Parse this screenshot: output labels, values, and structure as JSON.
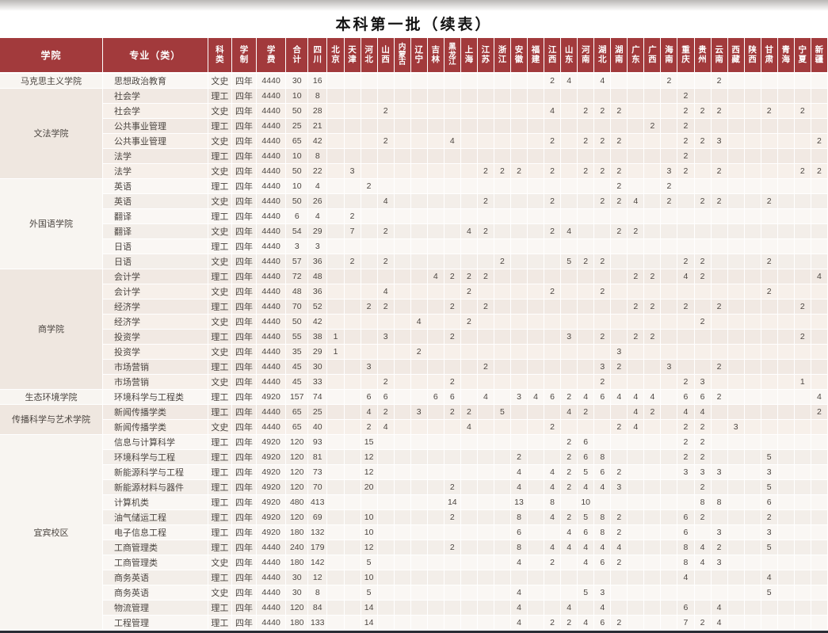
{
  "title": "本科第一批（续表）",
  "colors": {
    "header_bg": "#a23a3c",
    "header_text": "#ffffff",
    "body_text": "#4b4540",
    "section_beige": "#f1e9e3",
    "section_light": "#faf7f4",
    "bottom_border": "#2a2d35"
  },
  "table": {
    "left_headers": [
      "学院",
      "专业（类）",
      "科类",
      "学制",
      "学费",
      "合计"
    ],
    "provinces": [
      "四川",
      "北京",
      "天津",
      "河北",
      "山西",
      "内蒙古",
      "辽宁",
      "吉林",
      "黑龙江",
      "上海",
      "江苏",
      "浙江",
      "安徽",
      "福建",
      "江西",
      "山东",
      "河南",
      "湖北",
      "湖南",
      "广东",
      "广西",
      "海南",
      "重庆",
      "贵州",
      "云南",
      "西藏",
      "陕西",
      "甘肃",
      "青海",
      "宁夏",
      "新疆"
    ],
    "colleges": [
      {
        "name": "马克思主义学院",
        "row_count": 1
      },
      {
        "name": "文法学院",
        "row_count": 6
      },
      {
        "name": "外国语学院",
        "row_count": 6
      },
      {
        "name": "商学院",
        "row_count": 8
      },
      {
        "name": "生态环境学院",
        "row_count": 1
      },
      {
        "name": "传播科学与艺术学院",
        "row_count": 2
      },
      {
        "name": "宜宾校区",
        "row_count": 13
      }
    ],
    "rows": [
      {
        "major": "思想政治教育",
        "category": "文史",
        "duration": "四年",
        "tuition": "4440",
        "total": "30",
        "quotas": {
          "四川": 16,
          "江西": 2,
          "山东": 4,
          "湖北": 4,
          "海南": 2,
          "云南": 2
        }
      },
      {
        "major": "社会学",
        "category": "理工",
        "duration": "四年",
        "tuition": "4440",
        "total": "10",
        "quotas": {
          "四川": 8,
          "重庆": 2
        }
      },
      {
        "major": "社会学",
        "category": "文史",
        "duration": "四年",
        "tuition": "4440",
        "total": "50",
        "quotas": {
          "四川": 28,
          "山西": 2,
          "江西": 4,
          "河南": 2,
          "湖北": 2,
          "湖南": 2,
          "重庆": 2,
          "贵州": 2,
          "云南": 2,
          "甘肃": 2,
          "宁夏": 2
        }
      },
      {
        "major": "公共事业管理",
        "category": "理工",
        "duration": "四年",
        "tuition": "4440",
        "total": "25",
        "quotas": {
          "四川": 21,
          "广西": 2,
          "重庆": 2
        }
      },
      {
        "major": "公共事业管理",
        "category": "文史",
        "duration": "四年",
        "tuition": "4440",
        "total": "65",
        "quotas": {
          "四川": 42,
          "山西": 2,
          "黑龙江": 4,
          "江西": 2,
          "河南": 2,
          "湖北": 2,
          "湖南": 2,
          "重庆": 2,
          "贵州": 2,
          "云南": 3,
          "新疆": 2
        }
      },
      {
        "major": "法学",
        "category": "理工",
        "duration": "四年",
        "tuition": "4440",
        "total": "10",
        "quotas": {
          "四川": 8,
          "重庆": 2
        }
      },
      {
        "major": "法学",
        "category": "文史",
        "duration": "四年",
        "tuition": "4440",
        "total": "50",
        "quotas": {
          "四川": 22,
          "天津": 3,
          "江苏": 2,
          "浙江": 2,
          "安徽": 2,
          "江西": 2,
          "河南": 2,
          "湖北": 2,
          "湖南": 2,
          "海南": 3,
          "重庆": 2,
          "云南": 2,
          "宁夏": 2,
          "新疆": 2
        }
      },
      {
        "major": "英语",
        "category": "理工",
        "duration": "四年",
        "tuition": "4440",
        "total": "10",
        "quotas": {
          "四川": 4,
          "河北": 2,
          "湖南": 2,
          "海南": 2
        }
      },
      {
        "major": "英语",
        "category": "文史",
        "duration": "四年",
        "tuition": "4440",
        "total": "50",
        "quotas": {
          "四川": 26,
          "山西": 4,
          "江苏": 2,
          "江西": 2,
          "湖北": 2,
          "湖南": 2,
          "广东": 4,
          "海南": 2,
          "贵州": 2,
          "云南": 2,
          "甘肃": 2
        }
      },
      {
        "major": "翻译",
        "category": "理工",
        "duration": "四年",
        "tuition": "4440",
        "total": "6",
        "quotas": {
          "四川": 4,
          "天津": 2
        }
      },
      {
        "major": "翻译",
        "category": "文史",
        "duration": "四年",
        "tuition": "4440",
        "total": "54",
        "quotas": {
          "四川": 29,
          "天津": 7,
          "山西": 2,
          "上海": 4,
          "江苏": 2,
          "江西": 2,
          "山东": 4,
          "湖南": 2,
          "广东": 2
        }
      },
      {
        "major": "日语",
        "category": "理工",
        "duration": "四年",
        "tuition": "4440",
        "total": "3",
        "quotas": {
          "四川": 3
        }
      },
      {
        "major": "日语",
        "category": "文史",
        "duration": "四年",
        "tuition": "4440",
        "total": "57",
        "quotas": {
          "四川": 36,
          "天津": 2,
          "山西": 2,
          "浙江": 2,
          "山东": 5,
          "河南": 2,
          "湖北": 2,
          "重庆": 2,
          "贵州": 2,
          "甘肃": 2
        }
      },
      {
        "major": "会计学",
        "category": "理工",
        "duration": "四年",
        "tuition": "4440",
        "total": "72",
        "quotas": {
          "四川": 48,
          "吉林": 4,
          "黑龙江": 2,
          "上海": 2,
          "江苏": 2,
          "广东": 2,
          "广西": 2,
          "重庆": 4,
          "贵州": 2,
          "新疆": 4
        }
      },
      {
        "major": "会计学",
        "category": "文史",
        "duration": "四年",
        "tuition": "4440",
        "total": "48",
        "quotas": {
          "四川": 36,
          "山西": 4,
          "上海": 2,
          "江西": 2,
          "湖北": 2,
          "甘肃": 2
        }
      },
      {
        "major": "经济学",
        "category": "理工",
        "duration": "四年",
        "tuition": "4440",
        "total": "70",
        "quotas": {
          "四川": 52,
          "河北": 2,
          "山西": 2,
          "黑龙江": 2,
          "江苏": 2,
          "广东": 2,
          "广西": 2,
          "重庆": 2,
          "云南": 2,
          "宁夏": 2
        }
      },
      {
        "major": "经济学",
        "category": "文史",
        "duration": "四年",
        "tuition": "4440",
        "total": "50",
        "quotas": {
          "四川": 42,
          "辽宁": 4,
          "上海": 2,
          "贵州": 2
        }
      },
      {
        "major": "投资学",
        "category": "理工",
        "duration": "四年",
        "tuition": "4440",
        "total": "55",
        "quotas": {
          "四川": 38,
          "北京": 1,
          "山西": 3,
          "黑龙江": 2,
          "山东": 3,
          "湖北": 2,
          "广东": 2,
          "广西": 2,
          "宁夏": 2
        }
      },
      {
        "major": "投资学",
        "category": "文史",
        "duration": "四年",
        "tuition": "4440",
        "total": "35",
        "quotas": {
          "四川": 29,
          "北京": 1,
          "辽宁": 2,
          "湖南": 3
        }
      },
      {
        "major": "市场营销",
        "category": "理工",
        "duration": "四年",
        "tuition": "4440",
        "total": "45",
        "quotas": {
          "四川": 30,
          "河北": 3,
          "江苏": 2,
          "湖北": 3,
          "湖南": 2,
          "海南": 3,
          "云南": 2
        }
      },
      {
        "major": "市场营销",
        "category": "文史",
        "duration": "四年",
        "tuition": "4440",
        "total": "45",
        "quotas": {
          "四川": 33,
          "山西": 2,
          "黑龙江": 2,
          "湖北": 2,
          "重庆": 2,
          "贵州": 3,
          "宁夏": 1
        }
      },
      {
        "major": "环境科学与工程类",
        "category": "理工",
        "duration": "四年",
        "tuition": "4920",
        "total": "157",
        "quotas": {
          "四川": 74,
          "河北": 6,
          "山西": 6,
          "吉林": 6,
          "黑龙江": 6,
          "江苏": 4,
          "安徽": 3,
          "福建": 4,
          "江西": 6,
          "山东": 2,
          "河南": 4,
          "湖北": 6,
          "湖南": 4,
          "广东": 4,
          "广西": 4,
          "重庆": 6,
          "贵州": 6,
          "云南": 2,
          "新疆": 4
        }
      },
      {
        "major": "新闻传播学类",
        "category": "理工",
        "duration": "四年",
        "tuition": "4440",
        "total": "65",
        "quotas": {
          "四川": 25,
          "河北": 4,
          "山西": 2,
          "辽宁": 3,
          "黑龙江": 2,
          "上海": 2,
          "浙江": 5,
          "山东": 4,
          "河南": 2,
          "广东": 4,
          "广西": 2,
          "重庆": 4,
          "贵州": 4,
          "新疆": 2
        }
      },
      {
        "major": "新闻传播学类",
        "category": "文史",
        "duration": "四年",
        "tuition": "4440",
        "total": "65",
        "quotas": {
          "四川": 40,
          "河北": 2,
          "山西": 4,
          "上海": 4,
          "江西": 2,
          "湖南": 2,
          "广东": 4,
          "重庆": 2,
          "贵州": 2,
          "西藏": 3
        }
      },
      {
        "major": "信息与计算科学",
        "category": "理工",
        "duration": "四年",
        "tuition": "4920",
        "total": "120",
        "quotas": {
          "四川": 93,
          "河北": 15,
          "山东": 2,
          "河南": 6,
          "重庆": 2,
          "贵州": 2
        }
      },
      {
        "major": "环境科学与工程",
        "category": "理工",
        "duration": "四年",
        "tuition": "4920",
        "total": "120",
        "quotas": {
          "四川": 81,
          "河北": 12,
          "安徽": 2,
          "山东": 2,
          "河南": 6,
          "湖北": 8,
          "重庆": 2,
          "贵州": 2,
          "甘肃": 5
        }
      },
      {
        "major": "新能源科学与工程",
        "category": "理工",
        "duration": "四年",
        "tuition": "4920",
        "total": "120",
        "quotas": {
          "四川": 73,
          "河北": 12,
          "安徽": 4,
          "江西": 4,
          "山东": 2,
          "河南": 5,
          "湖北": 6,
          "湖南": 2,
          "重庆": 3,
          "贵州": 3,
          "云南": 3,
          "甘肃": 3
        }
      },
      {
        "major": "新能源材料与器件",
        "category": "理工",
        "duration": "四年",
        "tuition": "4920",
        "total": "120",
        "quotas": {
          "四川": 70,
          "河北": 20,
          "黑龙江": 2,
          "安徽": 4,
          "江西": 4,
          "山东": 2,
          "河南": 4,
          "湖北": 4,
          "湖南": 3,
          "贵州": 2,
          "甘肃": 5
        }
      },
      {
        "major": "计算机类",
        "category": "理工",
        "duration": "四年",
        "tuition": "4920",
        "total": "480",
        "quotas": {
          "四川": 413,
          "黑龙江": 14,
          "安徽": 13,
          "江西": 8,
          "河南": 10,
          "贵州": 8,
          "云南": 8,
          "甘肃": 6
        }
      },
      {
        "major": "油气储运工程",
        "category": "理工",
        "duration": "四年",
        "tuition": "4920",
        "total": "120",
        "quotas": {
          "四川": 69,
          "河北": 10,
          "黑龙江": 2,
          "安徽": 8,
          "江西": 4,
          "山东": 2,
          "河南": 5,
          "湖北": 8,
          "湖南": 2,
          "重庆": 6,
          "贵州": 2,
          "甘肃": 2
        }
      },
      {
        "major": "电子信息工程",
        "category": "理工",
        "duration": "四年",
        "tuition": "4920",
        "total": "180",
        "quotas": {
          "四川": 132,
          "河北": 10,
          "安徽": 6,
          "山东": 4,
          "河南": 6,
          "湖北": 8,
          "湖南": 2,
          "重庆": 6,
          "云南": 3,
          "甘肃": 3
        }
      },
      {
        "major": "工商管理类",
        "category": "理工",
        "duration": "四年",
        "tuition": "4440",
        "total": "240",
        "quotas": {
          "四川": 179,
          "河北": 12,
          "黑龙江": 2,
          "安徽": 8,
          "江西": 4,
          "山东": 4,
          "河南": 4,
          "湖北": 4,
          "湖南": 4,
          "重庆": 8,
          "贵州": 4,
          "云南": 2,
          "甘肃": 5
        }
      },
      {
        "major": "工商管理类",
        "category": "文史",
        "duration": "四年",
        "tuition": "4440",
        "total": "180",
        "quotas": {
          "四川": 142,
          "河北": 5,
          "安徽": 4,
          "江西": 2,
          "河南": 4,
          "湖北": 6,
          "湖南": 2,
          "重庆": 8,
          "贵州": 4,
          "云南": 3
        }
      },
      {
        "major": "商务英语",
        "category": "理工",
        "duration": "四年",
        "tuition": "4440",
        "total": "30",
        "quotas": {
          "四川": 12,
          "河北": 10,
          "重庆": 4,
          "甘肃": 4
        }
      },
      {
        "major": "商务英语",
        "category": "文史",
        "duration": "四年",
        "tuition": "4440",
        "total": "30",
        "quotas": {
          "四川": 8,
          "河北": 5,
          "安徽": 4,
          "河南": 5,
          "湖北": 3,
          "甘肃": 5
        }
      },
      {
        "major": "物流管理",
        "category": "理工",
        "duration": "四年",
        "tuition": "4440",
        "total": "120",
        "quotas": {
          "四川": 84,
          "河北": 14,
          "安徽": 4,
          "山东": 4,
          "湖北": 4,
          "重庆": 6,
          "云南": 4
        }
      },
      {
        "major": "工程管理",
        "category": "理工",
        "duration": "四年",
        "tuition": "4440",
        "total": "180",
        "quotas": {
          "四川": 133,
          "河北": 14,
          "安徽": 4,
          "江西": 2,
          "山东": 2,
          "河南": 4,
          "湖北": 6,
          "湖南": 2,
          "重庆": 7,
          "贵州": 2,
          "云南": 4
        }
      }
    ]
  }
}
